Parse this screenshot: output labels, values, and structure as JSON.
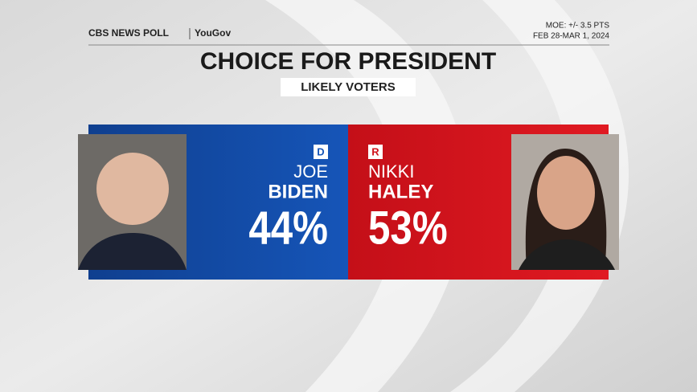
{
  "header": {
    "brand": "CBS NEWS POLL",
    "partner": "YouGov",
    "moe": "MOE: +/- 3.5 PTS",
    "dates": "FEB 28-MAR 1, 2024"
  },
  "title": "CHOICE FOR PRESIDENT",
  "subtitle": "LIKELY VOTERS",
  "candidates": [
    {
      "party": "D",
      "first_name": "JOE",
      "last_name": "BIDEN",
      "share": "44%"
    },
    {
      "party": "R",
      "first_name": "NIKKI",
      "last_name": "HALEY",
      "share": "53%"
    }
  ]
}
